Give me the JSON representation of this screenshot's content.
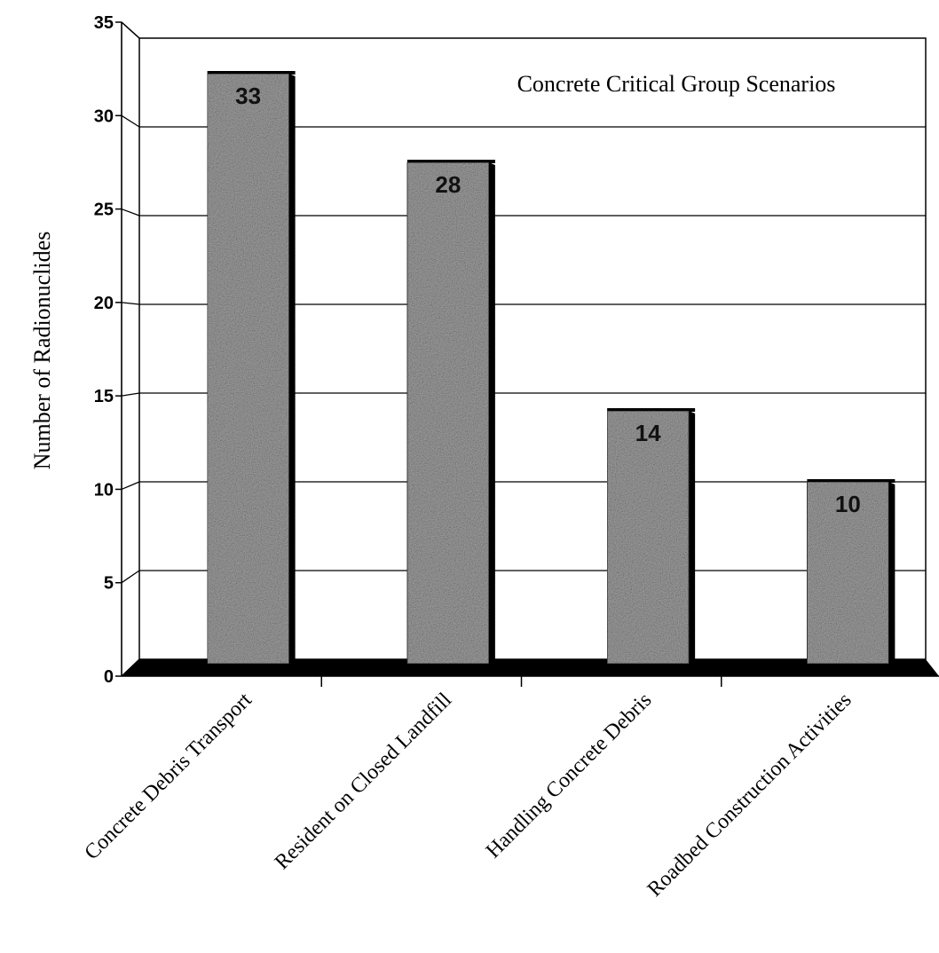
{
  "chart_data": {
    "type": "bar",
    "title": "Concrete Critical Group Scenarios",
    "xlabel": "",
    "ylabel": "Number of Radionuclides",
    "categories": [
      "Concrete Debris Transport",
      "Resident on Closed Landfill",
      "Handling Concrete Debris",
      "Roadbed Construction Activities"
    ],
    "values": [
      33,
      28,
      14,
      10
    ],
    "data_labels": [
      "33",
      "28",
      "14",
      "10"
    ],
    "ylim": [
      0,
      35
    ],
    "yticks": [
      0,
      5,
      10,
      15,
      20,
      25,
      30,
      35
    ],
    "ytick_labels": [
      "0",
      "5",
      "10",
      "15",
      "20",
      "25",
      "30",
      "35"
    ],
    "grid": true,
    "legend": "none",
    "colors": {
      "bar_fill": "#9a9a9a",
      "bar_shadow": "#000000",
      "floor": "#000000",
      "gridline": "#000000"
    }
  }
}
